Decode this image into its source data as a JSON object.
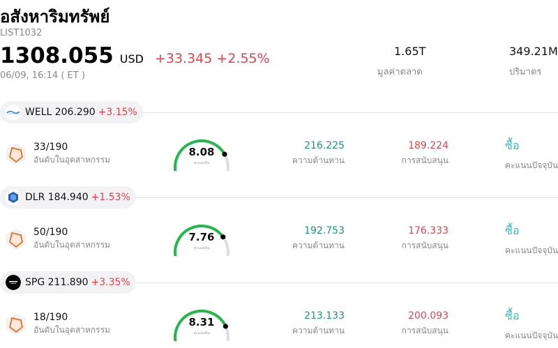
{
  "header": {
    "title": "อสังหาริมทรัพย์",
    "code": "LIST1032",
    "price": "1308.055",
    "currency": "USD",
    "change": "+33.345 +2.55%",
    "timestamp": "06/09, 16:14  ( ET )",
    "stats": [
      {
        "value": "1.65T",
        "label": "มูลค่าตลาด"
      },
      {
        "value": "349.21M",
        "label": "ปริมาตร"
      }
    ]
  },
  "colors": {
    "down_red": "#e8404c",
    "resistance_green": "#16987b",
    "signal_teal": "#2bbfc4",
    "gauge_green": "#22b84a"
  },
  "stocks": [
    {
      "symbol_price": "WELL 206.290",
      "change": "+3.15%",
      "logo_icon": "welltower-logo-icon",
      "rank": "33/190",
      "rank_label": "อันดับในอุตสาหกรรม",
      "score": "8.08",
      "score_fraction": 0.808,
      "score_label": "คะแนนหุ้น",
      "resistance": "216.225",
      "resistance_label": "ความต้านทาน",
      "support": "189.224",
      "support_label": "การสนับสนุน",
      "signal": "ซื้อ",
      "signal_label": "คะแนนปัจจุบัน"
    },
    {
      "symbol_price": "DLR 184.940",
      "change": "+1.53%",
      "logo_icon": "digital-realty-logo-icon",
      "rank": "50/190",
      "rank_label": "อันดับในอุตสาหกรรม",
      "score": "7.76",
      "score_fraction": 0.776,
      "score_label": "คะแนนหุ้น",
      "resistance": "192.753",
      "resistance_label": "ความต้านทาน",
      "support": "176.333",
      "support_label": "การสนับสนุน",
      "signal": "ซื้อ",
      "signal_label": "คะแนนปัจจุบัน"
    },
    {
      "symbol_price": "SPG 211.890",
      "change": "+3.35%",
      "logo_icon": "simon-property-logo-icon",
      "rank": "18/190",
      "rank_label": "อันดับในอุตสาหกรรม",
      "score": "8.31",
      "score_fraction": 0.831,
      "score_label": "คะแนนหุ้น",
      "resistance": "213.133",
      "resistance_label": "ความต้านทาน",
      "support": "200.093",
      "support_label": "การสนับสนุน",
      "signal": "ซื้อ",
      "signal_label": "คะแนนปัจจุบัน"
    }
  ]
}
